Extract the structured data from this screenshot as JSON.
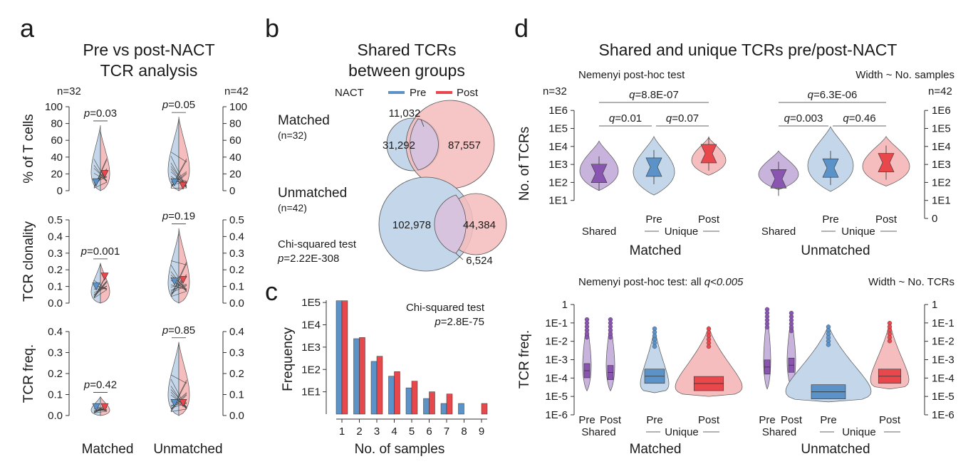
{
  "colors": {
    "pre": "#c3d6ea",
    "pre_dark": "#5b93c9",
    "post": "#f5bdbd",
    "post_dark": "#e8474b",
    "shared": "#c8b3dc",
    "shared_dark": "#8a55b0"
  },
  "chart_data": [
    {
      "panel": "a",
      "type": "violin",
      "title": [
        "Pre vs post-NACT",
        "TCR analysis"
      ],
      "groups": [
        "Matched",
        "Unmatched"
      ],
      "n_labels": [
        "n=32",
        "n=42"
      ],
      "subplots": [
        {
          "ylabel": "% of T cells",
          "ylim": [
            0,
            100
          ],
          "ticks": [
            "0",
            "20",
            "40",
            "60",
            "80",
            "100"
          ],
          "tick_values": [
            0,
            20,
            40,
            60,
            80,
            100
          ],
          "pvalues": {
            "Matched": "0.03",
            "Unmatched": "0.05"
          },
          "medians": {
            "Matched": {
              "pre": 10,
              "post": 20
            },
            "Unmatched": {
              "pre": 10,
              "post": 6
            }
          },
          "max": {
            "Matched": {
              "pre": 78,
              "post": 72
            },
            "Unmatched": {
              "pre": 86,
              "post": 88
            }
          }
        },
        {
          "ylabel": "TCR clonality",
          "ylim": [
            0,
            0.5
          ],
          "ticks": [
            "0.0",
            "0.1",
            "0.2",
            "0.3",
            "0.4",
            "0.5"
          ],
          "tick_values": [
            0,
            0.1,
            0.2,
            0.3,
            0.4,
            0.5
          ],
          "pvalues": {
            "Matched": "0.001",
            "Unmatched": "0.19"
          },
          "medians": {
            "Matched": {
              "pre": 0.1,
              "post": 0.16
            },
            "Unmatched": {
              "pre": 0.13,
              "post": 0.14
            }
          },
          "max": {
            "Matched": {
              "pre": 0.24,
              "post": 0.24
            },
            "Unmatched": {
              "pre": 0.43,
              "post": 0.45
            }
          }
        },
        {
          "ylabel": "TCR freq.",
          "ylim": [
            0,
            0.4
          ],
          "ticks": [
            "0.0",
            "0.1",
            "0.2",
            "0.3",
            "0.4"
          ],
          "tick_values": [
            0,
            0.1,
            0.2,
            0.3,
            0.4
          ],
          "pvalues": {
            "Matched": "0.42",
            "Unmatched": "0.85"
          },
          "medians": {
            "Matched": {
              "pre": 0.04,
              "post": 0.04
            },
            "Unmatched": {
              "pre": 0.06,
              "post": 0.06
            }
          },
          "max": {
            "Matched": {
              "pre": 0.09,
              "post": 0.09
            },
            "Unmatched": {
              "pre": 0.35,
              "post": 0.35
            }
          }
        }
      ],
      "p_prefix": "p"
    },
    {
      "panel": "b",
      "type": "venn",
      "title": [
        "Shared TCRs",
        "between groups"
      ],
      "legend_title": "NACT",
      "legend": [
        "Pre",
        "Post"
      ],
      "sets": [
        {
          "name": "Matched",
          "n": "(n=32)",
          "pre_only": "31,292",
          "post_only": "87,557",
          "shared": "11,032"
        },
        {
          "name": "Unmatched",
          "n": "(n=42)",
          "pre_only": "102,978",
          "post_only": "44,384",
          "shared": "6,524"
        }
      ],
      "test": "Chi-squared test",
      "pvalue": "2.22E-308"
    },
    {
      "panel": "c",
      "type": "bar",
      "xlabel": "No. of samples",
      "ylabel": "Frequency",
      "yscale": "log",
      "yticks": [
        "1E1",
        "1E2",
        "1E3",
        "1E4",
        "1E5"
      ],
      "ytick_exponents": [
        1,
        2,
        3,
        4,
        5
      ],
      "categories": [
        "1",
        "2",
        "3",
        "4",
        "5",
        "6",
        "7",
        "8",
        "9"
      ],
      "series": [
        {
          "name": "Pre",
          "values": [
            120000,
            2400,
            230,
            50,
            15,
            5,
            3,
            3,
            null
          ]
        },
        {
          "name": "Post",
          "values": [
            120000,
            2700,
            390,
            80,
            30,
            10,
            8,
            null,
            3
          ]
        }
      ],
      "test": "Chi-squared test",
      "pvalue": "2.8E-75"
    },
    {
      "panel": "d",
      "type": "violin",
      "title": "Shared and unique TCRs pre/post-NACT",
      "top": {
        "ylabel": "No. of TCRs",
        "left_note": "Nemenyi post-hoc test",
        "right_note": "Width ~ No. samples",
        "left_ticks": [
          "1E1",
          "1E2",
          "1E3",
          "1E4",
          "1E5",
          "1E6"
        ],
        "right_ticks": [
          "0",
          "1E1",
          "1E2",
          "1E3",
          "1E4",
          "1E5",
          "1E6"
        ],
        "groups": [
          {
            "name": "Matched",
            "n": "n=32",
            "categories": [
              "Shared",
              "Pre",
              "Post"
            ],
            "q_top": "8.8E-07",
            "q_left": "0.01",
            "q_right": "0.07",
            "medians_log10": [
              2.5,
              2.85,
              3.6
            ]
          },
          {
            "name": "Unmatched",
            "n": "n=42",
            "categories": [
              "Shared",
              "Pre",
              "Post"
            ],
            "q_top": "6.3E-06",
            "q_left": "0.003",
            "q_right": "0.46",
            "medians_log10": [
              2.2,
              2.8,
              3.1
            ]
          }
        ],
        "unique_label": "Unique"
      },
      "bottom": {
        "ylabel": "TCR freq.",
        "left_note": "Nemenyi post-hoc test: all",
        "left_note_q": "q<0.005",
        "right_note": "Width ~ No. TCRs",
        "ticks": [
          "1E-6",
          "1E-5",
          "1E-4",
          "1E-3",
          "1E-2",
          "1E-1",
          "1"
        ],
        "groups": [
          {
            "name": "Matched",
            "categories": [
              "Pre",
              "Post",
              "Pre",
              "Post"
            ],
            "sub_labels": [
              "Shared",
              "Unique"
            ]
          },
          {
            "name": "Unmatched",
            "categories": [
              "Pre",
              "Post",
              "Pre",
              "Post"
            ],
            "sub_labels": [
              "Shared",
              "Unique"
            ]
          }
        ]
      }
    }
  ]
}
